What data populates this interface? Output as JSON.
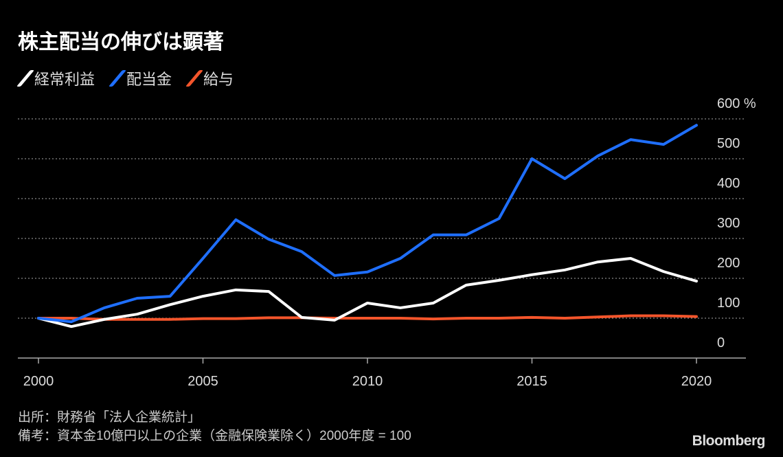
{
  "chart_data": {
    "type": "line",
    "title": "株主配当の伸びは顕著",
    "x": [
      2000,
      2001,
      2002,
      2003,
      2004,
      2005,
      2006,
      2007,
      2008,
      2009,
      2010,
      2011,
      2012,
      2013,
      2014,
      2015,
      2016,
      2017,
      2018,
      2019,
      2020
    ],
    "series": [
      {
        "name": "経常利益",
        "color": "#ffffff",
        "values": [
          100,
          79,
          97,
          110,
          134,
          155,
          171,
          167,
          102,
          95,
          138,
          126,
          138,
          183,
          195,
          209,
          221,
          241,
          250,
          217,
          193
        ]
      },
      {
        "name": "配当金",
        "color": "#1f6fff",
        "values": [
          100,
          91,
          126,
          150,
          155,
          250,
          347,
          298,
          267,
          207,
          216,
          250,
          309,
          309,
          350,
          500,
          450,
          507,
          548,
          536,
          584
        ]
      },
      {
        "name": "給与",
        "color": "#f4552b",
        "values": [
          100,
          100,
          97,
          97,
          97,
          99,
          99,
          101,
          101,
          100,
          100,
          100,
          98,
          100,
          100,
          102,
          100,
          103,
          106,
          106,
          104
        ]
      }
    ],
    "xlim": [
      2000,
      2020
    ],
    "ylim": [
      0,
      600
    ],
    "x_ticks": [
      "2000",
      "2005",
      "2010",
      "2015",
      "2020"
    ],
    "y_ticks": [
      "0",
      "100",
      "200",
      "300",
      "400",
      "500",
      "600"
    ],
    "y_unit": "%",
    "grid": "horizontal dotted",
    "legend": "top-left",
    "y_axis_position": "right"
  },
  "footnotes": {
    "source": "出所：財務省「法人企業統計」",
    "remark": "備考：資本金10億円以上の企業（金融保険業除く）2000年度 = 100"
  },
  "logo": "Bloomberg"
}
